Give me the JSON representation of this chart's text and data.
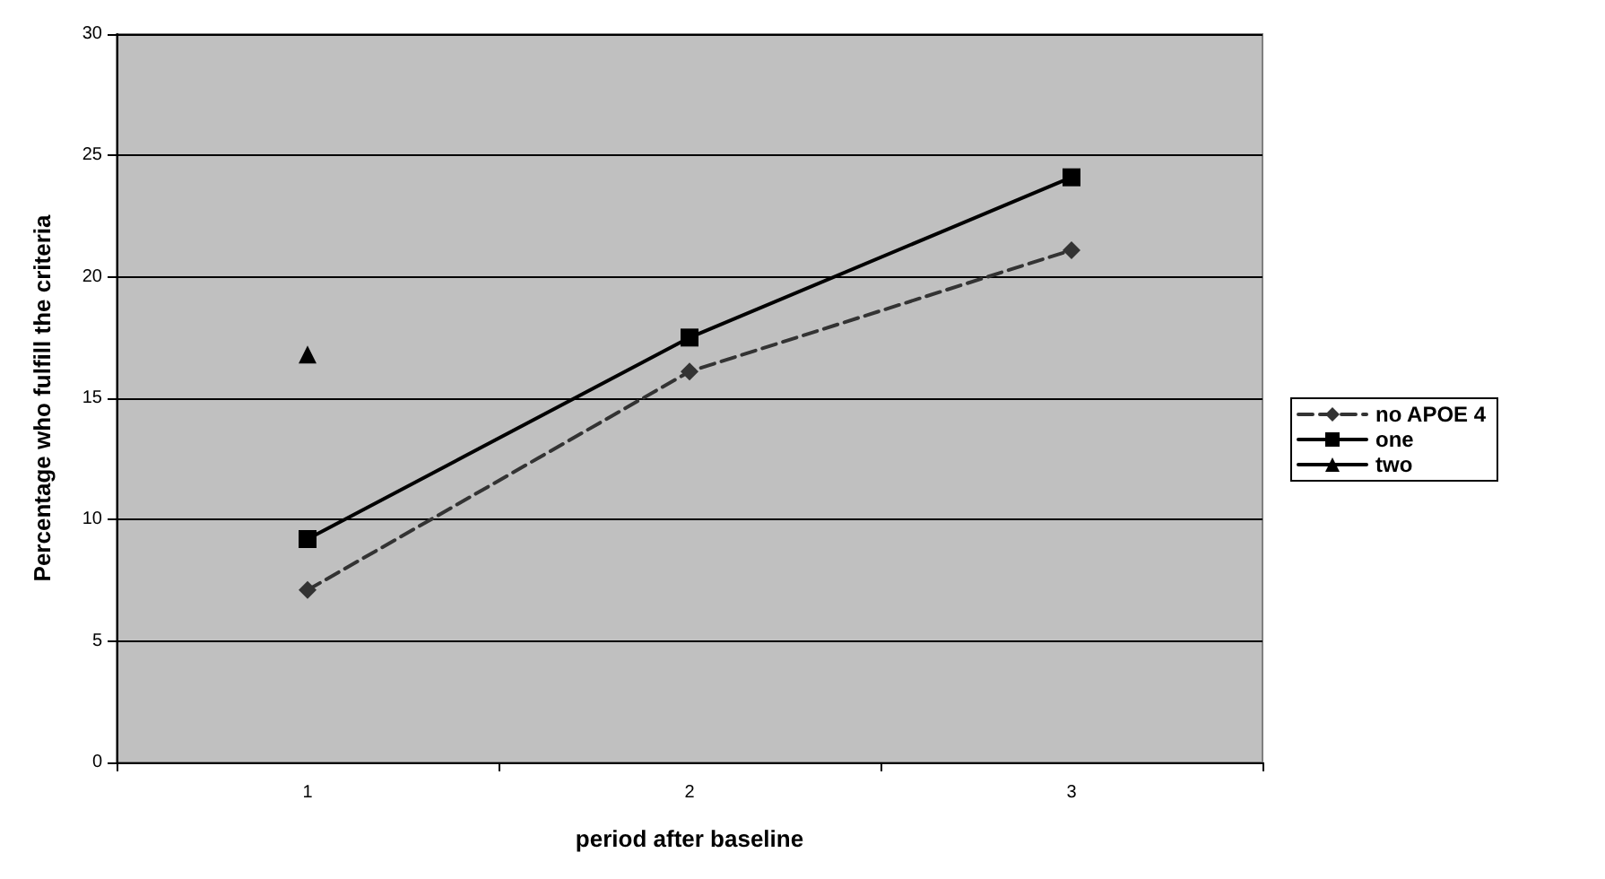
{
  "chart_data": {
    "type": "line",
    "xlabel": "period after baseline",
    "ylabel": "Percentage who fulfill the criteria",
    "categories": [
      "1",
      "2",
      "3"
    ],
    "series": [
      {
        "name": "no APOE 4",
        "color": "#333333",
        "marker": "diamond",
        "line_style": "dashed",
        "values": [
          7.1,
          16.1,
          21.1
        ]
      },
      {
        "name": "one",
        "color": "#000000",
        "marker": "square",
        "line_style": "solid",
        "values": [
          9.2,
          17.5,
          24.1
        ]
      },
      {
        "name": "two",
        "color": "#000000",
        "marker": "triangle",
        "line_style": "solid",
        "values": [
          16.8,
          null,
          null
        ]
      }
    ],
    "ylim": [
      0,
      30
    ],
    "yticks": [
      0,
      5,
      10,
      15,
      20,
      25,
      30
    ],
    "grid": "y",
    "legend": "right"
  }
}
